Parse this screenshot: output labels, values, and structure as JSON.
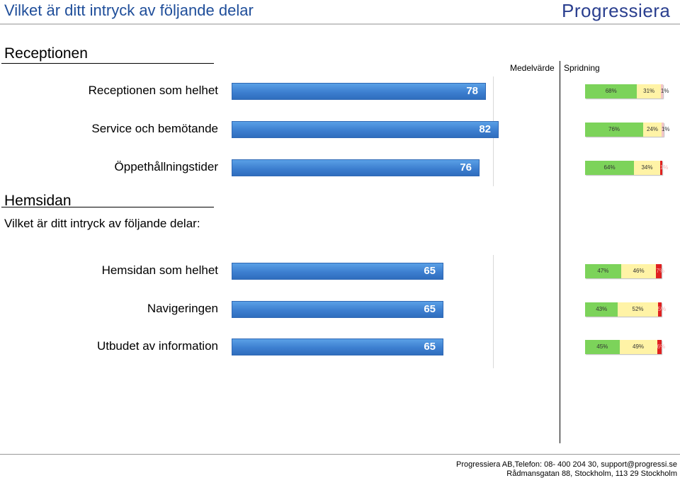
{
  "header": {
    "title": "Vilket är ditt intryck av följande delar",
    "logo": "Progressiera"
  },
  "columns": {
    "mean": "Medelvärde",
    "spread": "Spridning"
  },
  "sections": [
    {
      "title": "Receptionen",
      "question": ""
    },
    {
      "title": "Hemsidan",
      "question": "Vilket är ditt intryck av följande delar:"
    }
  ],
  "chart_data": {
    "type": "bar",
    "orientation": "horizontal",
    "categories": [
      "Receptionen som helhet",
      "Service och bemötande",
      "Öppethållningstider",
      "Hemsidan som helhet",
      "Navigeringen",
      "Utbudet av information"
    ],
    "series": [
      {
        "values": [
          78,
          82,
          76,
          65,
          65,
          65
        ]
      }
    ],
    "xlim": [
      0,
      100
    ],
    "spread": [
      {
        "labels": [
          "68%",
          "31%",
          "1%"
        ],
        "values": [
          68,
          31,
          1
        ],
        "colors": [
          "#7cd35a",
          "#fff3a6",
          "#f6c6c6"
        ]
      },
      {
        "labels": [
          "76%",
          "24%",
          "1%"
        ],
        "values": [
          76,
          24,
          1
        ],
        "colors": [
          "#7cd35a",
          "#fff3a6",
          "#f6c6c6"
        ]
      },
      {
        "labels": [
          "64%",
          "34%",
          "1%"
        ],
        "values": [
          64,
          34,
          1
        ],
        "colors": [
          "#7cd35a",
          "#fff3a6",
          "#e02020"
        ]
      },
      {
        "labels": [
          "47%",
          "46%",
          "7%"
        ],
        "values": [
          47,
          46,
          7
        ],
        "colors": [
          "#7cd35a",
          "#fff3a6",
          "#e02020"
        ]
      },
      {
        "labels": [
          "43%",
          "52%",
          "5%"
        ],
        "values": [
          43,
          52,
          5
        ],
        "colors": [
          "#7cd35a",
          "#fff3a6",
          "#e02020"
        ]
      },
      {
        "labels": [
          "45%",
          "49%",
          "6%"
        ],
        "values": [
          45,
          49,
          6
        ],
        "colors": [
          "#7cd35a",
          "#fff3a6",
          "#e02020"
        ]
      }
    ]
  },
  "footer": {
    "line1": "Progressiera AB,Telefon: 08-  400 204 30, support@progressi.se",
    "line2": "Rådmansgatan 88, Stockholm, 113 29 Stockholm"
  }
}
